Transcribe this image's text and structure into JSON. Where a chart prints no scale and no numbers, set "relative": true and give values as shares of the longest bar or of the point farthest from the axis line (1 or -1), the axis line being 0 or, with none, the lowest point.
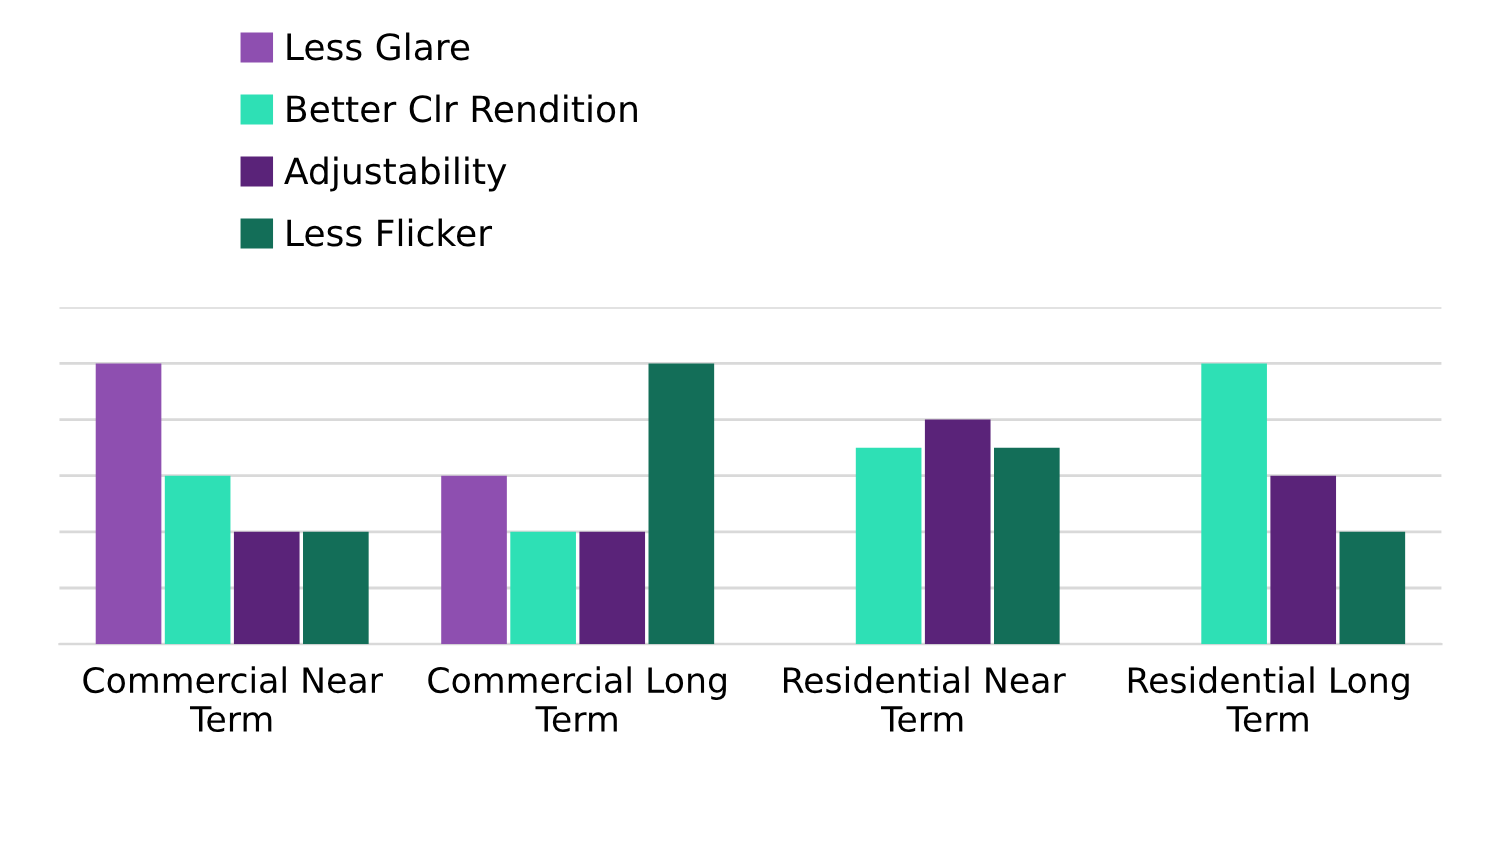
{
  "chart_data": {
    "type": "bar",
    "relative": true,
    "grid": "y",
    "legend": "top left",
    "categories": [
      "Commercial Near Term",
      "Commercial Long Term",
      "Residential Near Term",
      "Residential Long Term"
    ],
    "series": [
      {
        "name": "Less Glare",
        "color": "#8e4fb0",
        "values": [
          1,
          0.6,
          null,
          null
        ]
      },
      {
        "name": "Better Clr Rendition",
        "color": "#2ee0b5",
        "values": [
          0.6,
          0.4,
          0.7,
          1
        ]
      },
      {
        "name": "Adjustability",
        "color": "#5a2379",
        "values": [
          0.4,
          0.4,
          0.8,
          0.6
        ]
      },
      {
        "name": "Less Flicker",
        "color": "#136e58",
        "values": [
          0.4,
          1,
          0.7,
          0.4
        ]
      }
    ]
  }
}
